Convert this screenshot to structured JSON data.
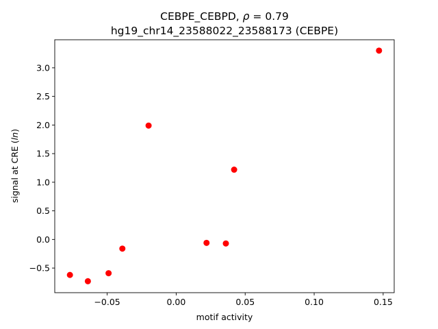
{
  "chart_data": {
    "type": "scatter",
    "title_line1": "CEBPE_CEBPD, ",
    "title_rho_symbol": "ρ",
    "title_rho_value": " = 0.79",
    "title_line2": "hg19_chr14_23588022_23588173 (CEBPE)",
    "xlabel": "motif activity",
    "ylabel_prefix": "signal at CRE (",
    "ylabel_italic": "ln",
    "ylabel_suffix": ")",
    "xlim": [
      -0.088,
      0.158
    ],
    "ylim": [
      -0.93,
      3.49
    ],
    "xticks": [
      {
        "value": -0.05,
        "label": "−0.05"
      },
      {
        "value": 0.0,
        "label": "0.00"
      },
      {
        "value": 0.05,
        "label": "0.05"
      },
      {
        "value": 0.1,
        "label": "0.10"
      },
      {
        "value": 0.15,
        "label": "0.15"
      }
    ],
    "yticks": [
      {
        "value": -0.5,
        "label": "−0.5"
      },
      {
        "value": 0.0,
        "label": "0.0"
      },
      {
        "value": 0.5,
        "label": "0.5"
      },
      {
        "value": 1.0,
        "label": "1.0"
      },
      {
        "value": 1.5,
        "label": "1.5"
      },
      {
        "value": 2.0,
        "label": "2.0"
      },
      {
        "value": 2.5,
        "label": "2.5"
      },
      {
        "value": 3.0,
        "label": "3.0"
      }
    ],
    "points": [
      {
        "x": -0.077,
        "y": -0.62
      },
      {
        "x": -0.064,
        "y": -0.73
      },
      {
        "x": -0.049,
        "y": -0.59
      },
      {
        "x": -0.039,
        "y": -0.16
      },
      {
        "x": -0.02,
        "y": 1.99
      },
      {
        "x": 0.022,
        "y": -0.06
      },
      {
        "x": 0.036,
        "y": -0.07
      },
      {
        "x": 0.042,
        "y": 1.22
      },
      {
        "x": 0.147,
        "y": 3.3
      }
    ],
    "marker_color": "#ff0000",
    "grid": false
  }
}
